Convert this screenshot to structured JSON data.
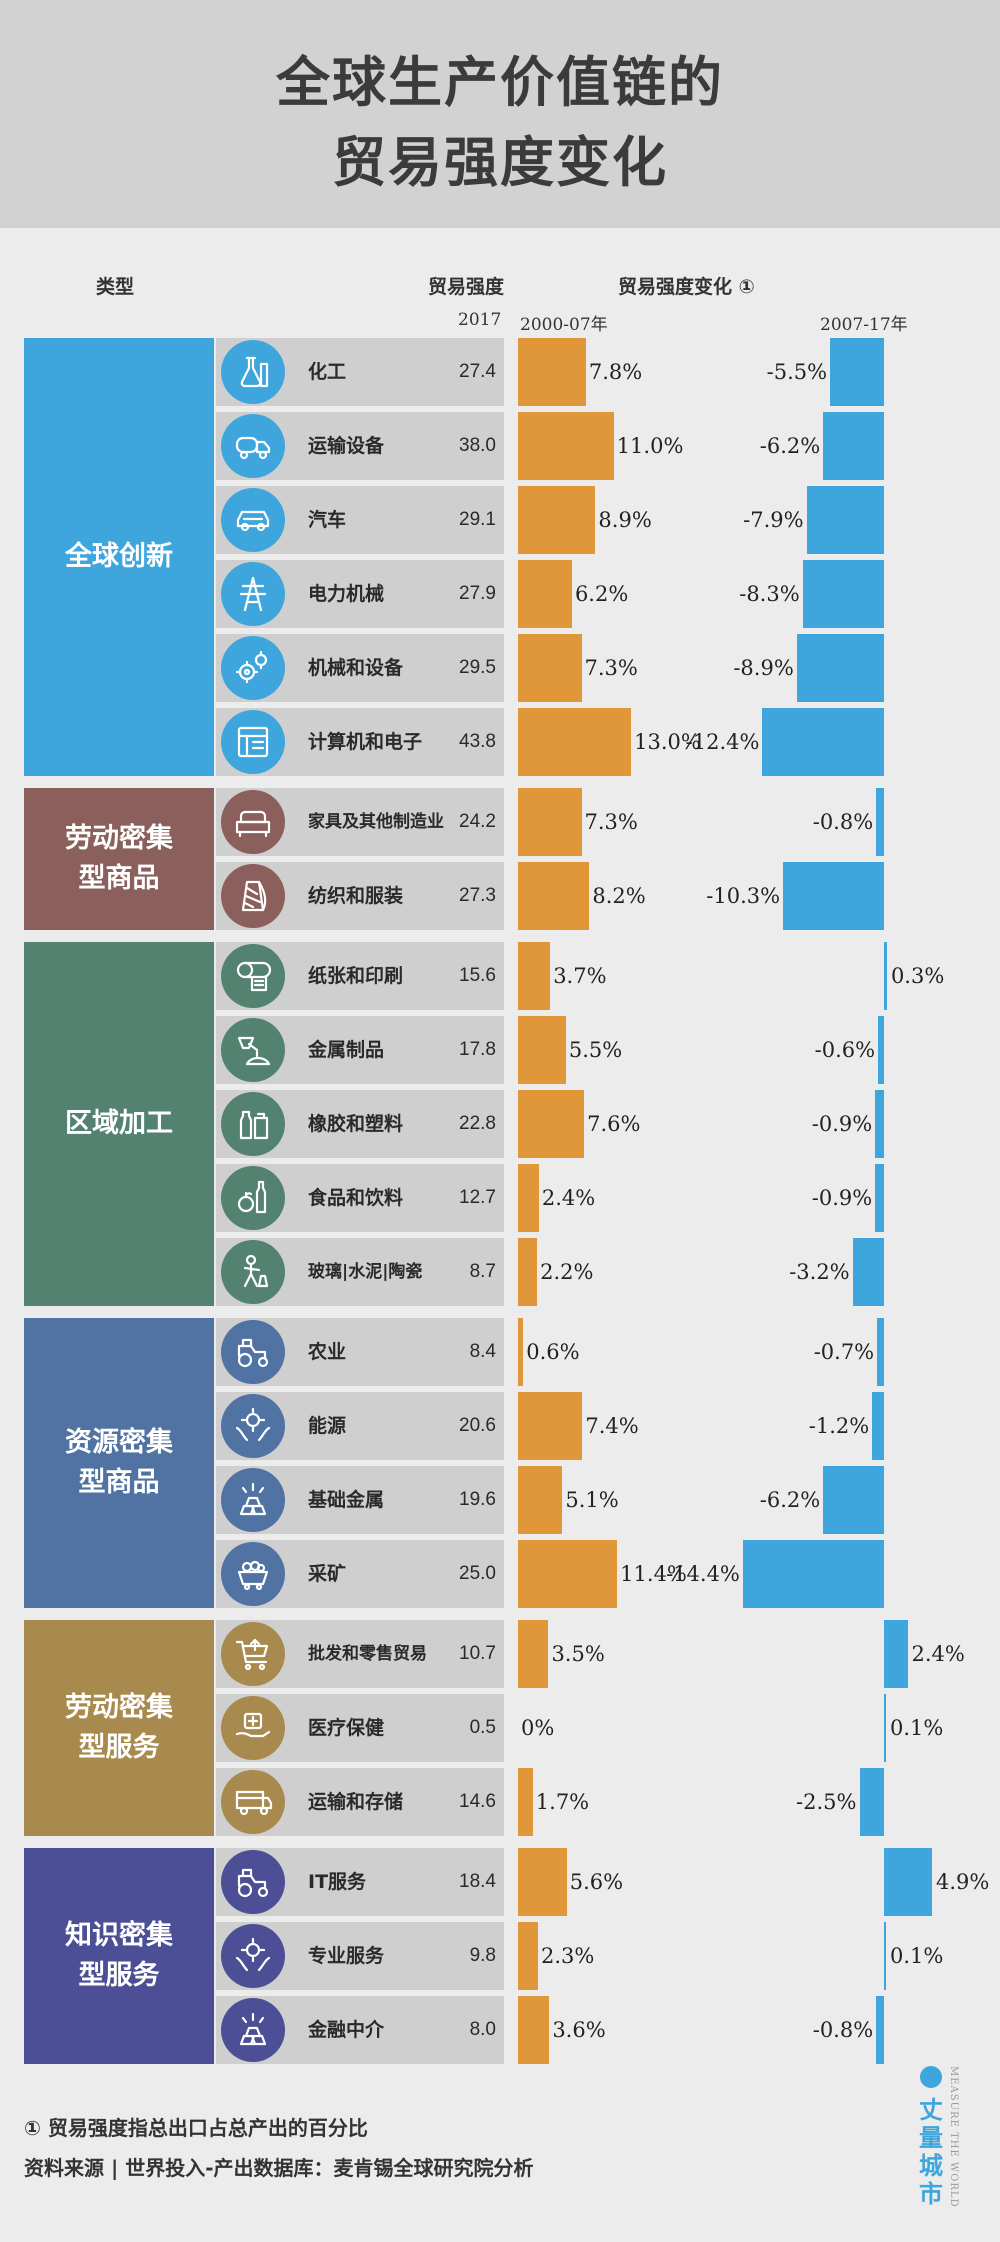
{
  "title": [
    "全球生产价值链的",
    "贸易强度变化"
  ],
  "header": {
    "type_label": "类型",
    "intensity_label": "贸易强度",
    "change_label": "贸易强度变化 ①",
    "year_2017": "2017",
    "period_1": "2000-07年",
    "period_2": "2007-17年"
  },
  "chart_data": {
    "type": "bar",
    "categories": [
      "全球创新",
      "劳动密集型商品",
      "区域加工",
      "资源密集型商品",
      "劳动密集型服务",
      "知识密集型服务"
    ],
    "groups": [
      {
        "name": "全球创新",
        "label_lines": [
          "全球创新"
        ],
        "color": "#3ea6dd",
        "rows": [
          {
            "name": "化工",
            "icon": "chemical-flask-icon",
            "value_2017": "27.4",
            "change_0007": 7.8,
            "change_0007_label": "7.8%",
            "change_0717": -5.5,
            "change_0717_label": "-5.5%"
          },
          {
            "name": "运输设备",
            "icon": "truck-icon",
            "value_2017": "38.0",
            "change_0007": 11.0,
            "change_0007_label": "11.0%",
            "change_0717": -6.2,
            "change_0717_label": "-6.2%"
          },
          {
            "name": "汽车",
            "icon": "car-icon",
            "value_2017": "29.1",
            "change_0007": 8.9,
            "change_0007_label": "8.9%",
            "change_0717": -7.9,
            "change_0717_label": "-7.9%"
          },
          {
            "name": "电力机械",
            "icon": "power-tower-icon",
            "value_2017": "27.9",
            "change_0007": 6.2,
            "change_0007_label": "6.2%",
            "change_0717": -8.3,
            "change_0717_label": "-8.3%"
          },
          {
            "name": "机械和设备",
            "icon": "gears-icon",
            "value_2017": "29.5",
            "change_0007": 7.3,
            "change_0007_label": "7.3%",
            "change_0717": -8.9,
            "change_0717_label": "-8.9%"
          },
          {
            "name": "计算机和电子",
            "icon": "computer-icon",
            "value_2017": "43.8",
            "change_0007": 13.0,
            "change_0007_label": "13.0%",
            "change_0717": -12.4,
            "change_0717_label": "-12.4%"
          }
        ]
      },
      {
        "name": "劳动密集型商品",
        "label_lines": [
          "劳动密集",
          "型商品"
        ],
        "color": "#8a5f5c",
        "rows": [
          {
            "name": "家具及其他制造业",
            "icon": "sofa-icon",
            "value_2017": "24.2",
            "change_0007": 7.3,
            "change_0007_label": "7.3%",
            "change_0717": -0.8,
            "change_0717_label": "-0.8%"
          },
          {
            "name": "纺织和服装",
            "icon": "thread-spool-icon",
            "value_2017": "27.3",
            "change_0007": 8.2,
            "change_0007_label": "8.2%",
            "change_0717": -10.3,
            "change_0717_label": "-10.3%"
          }
        ]
      },
      {
        "name": "区域加工",
        "label_lines": [
          "区域加工"
        ],
        "color": "#538270",
        "rows": [
          {
            "name": "纸张和印刷",
            "icon": "paper-roll-icon",
            "value_2017": "15.6",
            "change_0007": 3.7,
            "change_0007_label": "3.7%",
            "change_0717": 0.3,
            "change_0717_label": "0.3%"
          },
          {
            "name": "金属制品",
            "icon": "metal-pour-icon",
            "value_2017": "17.8",
            "change_0007": 5.5,
            "change_0007_label": "5.5%",
            "change_0717": -0.6,
            "change_0717_label": "-0.6%"
          },
          {
            "name": "橡胶和塑料",
            "icon": "plastic-bottles-icon",
            "value_2017": "22.8",
            "change_0007": 7.6,
            "change_0007_label": "7.6%",
            "change_0717": -0.9,
            "change_0717_label": "-0.9%"
          },
          {
            "name": "食品和饮料",
            "icon": "food-drink-icon",
            "value_2017": "12.7",
            "change_0007": 2.4,
            "change_0007_label": "2.4%",
            "change_0717": -0.9,
            "change_0717_label": "-0.9%"
          },
          {
            "name": "玻璃|水泥|陶瓷",
            "icon": "worker-icon",
            "value_2017": "8.7",
            "change_0007": 2.2,
            "change_0007_label": "2.2%",
            "change_0717": -3.2,
            "change_0717_label": "-3.2%"
          }
        ]
      },
      {
        "name": "资源密集型商品",
        "label_lines": [
          "资源密集",
          "型商品"
        ],
        "color": "#5073a3",
        "rows": [
          {
            "name": "农业",
            "icon": "tractor-icon",
            "value_2017": "8.4",
            "change_0007": 0.6,
            "change_0007_label": "0.6%",
            "change_0717": -0.7,
            "change_0717_label": "-0.7%"
          },
          {
            "name": "能源",
            "icon": "energy-hands-icon",
            "value_2017": "20.6",
            "change_0007": 7.4,
            "change_0007_label": "7.4%",
            "change_0717": -1.2,
            "change_0717_label": "-1.2%"
          },
          {
            "name": "基础金属",
            "icon": "gold-bars-icon",
            "value_2017": "19.6",
            "change_0007": 5.1,
            "change_0007_label": "5.1%",
            "change_0717": -6.2,
            "change_0717_label": "-6.2%"
          },
          {
            "name": "采矿",
            "icon": "mine-cart-icon",
            "value_2017": "25.0",
            "change_0007": 11.4,
            "change_0007_label": "11.4%",
            "change_0717": -14.4,
            "change_0717_label": "-14.4%"
          }
        ]
      },
      {
        "name": "劳动密集型服务",
        "label_lines": [
          "劳动密集",
          "型服务"
        ],
        "color": "#a88a4f",
        "rows": [
          {
            "name": "批发和零售贸易",
            "icon": "shopping-cart-icon",
            "value_2017": "10.7",
            "change_0007": 3.5,
            "change_0007_label": "3.5%",
            "change_0717": 2.4,
            "change_0717_label": "2.4%"
          },
          {
            "name": "医疗保健",
            "icon": "medical-hand-icon",
            "value_2017": "0.5",
            "change_0007": 0,
            "change_0007_label": "0%",
            "change_0717": 0.1,
            "change_0717_label": "0.1%"
          },
          {
            "name": "运输和存储",
            "icon": "cargo-truck-icon",
            "value_2017": "14.6",
            "change_0007": 1.7,
            "change_0007_label": "1.7%",
            "change_0717": -2.5,
            "change_0717_label": "-2.5%"
          }
        ]
      },
      {
        "name": "知识密集型服务",
        "label_lines": [
          "知识密集",
          "型服务"
        ],
        "color": "#4c4f96",
        "rows": [
          {
            "name": "IT服务",
            "icon": "tractor-icon",
            "value_2017": "18.4",
            "change_0007": 5.6,
            "change_0007_label": "5.6%",
            "change_0717": 4.9,
            "change_0717_label": "4.9%"
          },
          {
            "name": "专业服务",
            "icon": "energy-hands-icon",
            "value_2017": "9.8",
            "change_0007": 2.3,
            "change_0007_label": "2.3%",
            "change_0717": 0.1,
            "change_0717_label": "0.1%"
          },
          {
            "name": "金融中介",
            "icon": "gold-bars-icon",
            "value_2017": "8.0",
            "change_0007": 3.6,
            "change_0007_label": "3.6%",
            "change_0717": -0.8,
            "change_0717_label": "-0.8%"
          }
        ]
      }
    ],
    "colors": {
      "change_0007": "#e0973a",
      "change_0717": "#3ea6dd"
    }
  },
  "footnotes": {
    "note": "① 贸易强度指总出口占总产出的百分比",
    "source": "资料来源 | 世界投入-产出数据库：麦肯锡全球研究院分析"
  },
  "brand": {
    "name": "丈量城市",
    "tagline": "MEASURE THE WORLD"
  }
}
